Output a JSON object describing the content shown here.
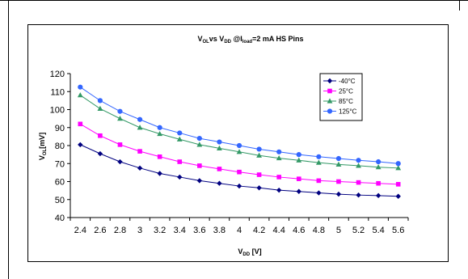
{
  "chart_data": {
    "type": "line",
    "title": {
      "parts": [
        "V",
        "OL",
        "vs V",
        "DD",
        " @I",
        "load",
        "=2 mA HS Pins"
      ]
    },
    "xlabel": {
      "parts": [
        "V",
        "DD",
        " [V]"
      ]
    },
    "ylabel": {
      "parts": [
        "V",
        "OL",
        "[mV]"
      ]
    },
    "x": [
      2.4,
      2.6,
      2.8,
      3.0,
      3.2,
      3.4,
      3.6,
      3.8,
      4.0,
      4.2,
      4.4,
      4.6,
      4.8,
      5.0,
      5.2,
      5.4,
      5.6
    ],
    "x_tick_labels": [
      "2.4",
      "2.6",
      "2.8",
      "3",
      "3.2",
      "3.4",
      "3.6",
      "3.8",
      "4",
      "4.2",
      "4.4",
      "4.6",
      "4.8",
      "5",
      "5.2",
      "5.4",
      "5.6"
    ],
    "ylim": [
      40,
      120
    ],
    "y_ticks": [
      40,
      50,
      60,
      70,
      80,
      90,
      100,
      110,
      120
    ],
    "grid": false,
    "legend_position": "top-right",
    "series": [
      {
        "name": "-40°C",
        "color": "#000080",
        "marker": "diamond",
        "values": [
          80.5,
          75.5,
          71,
          67.5,
          64.5,
          62.5,
          60.5,
          59,
          57.5,
          56.5,
          55.2,
          54.5,
          53.7,
          53,
          52.5,
          52.2,
          51.8
        ]
      },
      {
        "name": "25°C",
        "color": "#ff00ff",
        "marker": "square",
        "values": [
          92,
          85.5,
          80.5,
          76.8,
          73.8,
          71,
          68.8,
          67,
          65.3,
          63.8,
          62.5,
          61.5,
          60.5,
          60,
          59.5,
          59,
          58.5
        ]
      },
      {
        "name": "85°C",
        "color": "#339966",
        "marker": "triangle",
        "values": [
          108,
          100.5,
          95,
          90,
          86.5,
          83.5,
          80.5,
          78.5,
          76.5,
          74.5,
          73,
          71.8,
          70.5,
          69.5,
          68.8,
          68,
          67.5
        ]
      },
      {
        "name": "125°C",
        "color": "#3366ff",
        "marker": "circle",
        "values": [
          112.5,
          105,
          99,
          94.5,
          90,
          87,
          84,
          82,
          80,
          78,
          76.5,
          75,
          73.8,
          72.8,
          71.8,
          71,
          70
        ]
      }
    ]
  }
}
